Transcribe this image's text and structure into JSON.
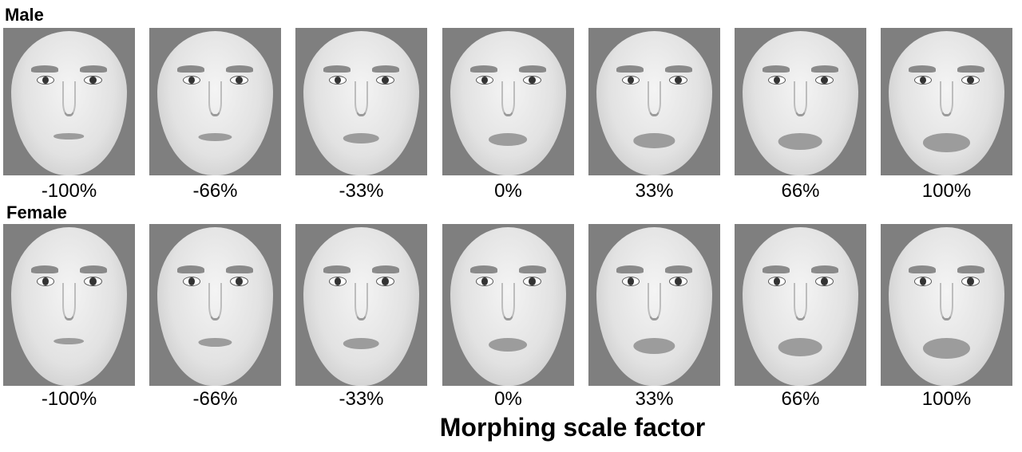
{
  "rows": [
    {
      "label": "Male",
      "scale_factors": [
        "-100%",
        "-66%",
        "-33%",
        "0%",
        "33%",
        "66%",
        "100%"
      ]
    },
    {
      "label": "Female",
      "scale_factors": [
        "-100%",
        "-66%",
        "-33%",
        "0%",
        "33%",
        "66%",
        "100%"
      ]
    }
  ],
  "axis_title": "Morphing scale factor",
  "colors": {
    "panel_background": "#7f7f7f"
  }
}
